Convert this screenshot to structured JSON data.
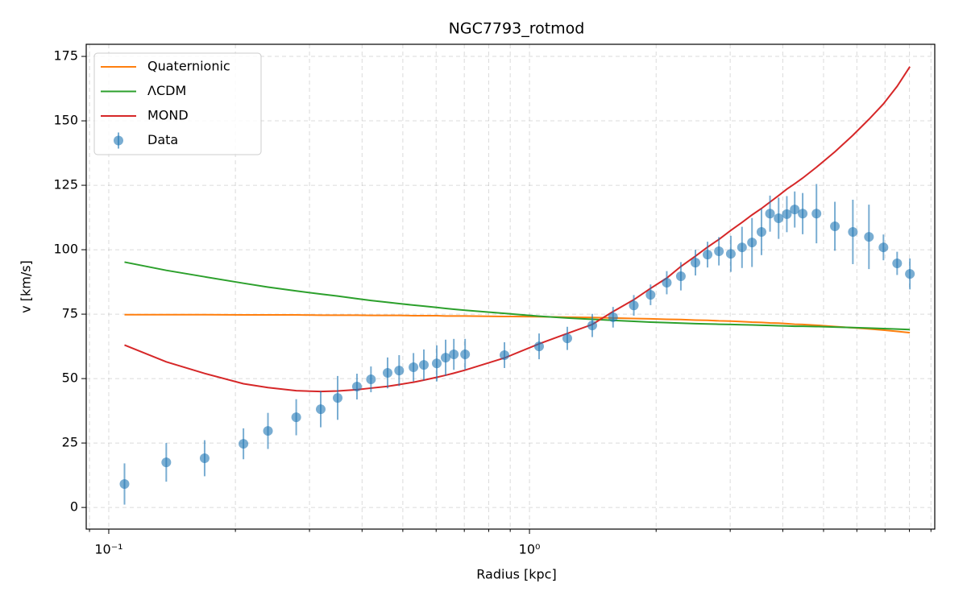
{
  "chart_data": {
    "type": "line",
    "title": "NGC7793_rotmod",
    "x_label": "Radius [kpc]",
    "y_label": "v [km/s]",
    "x_scale": "log",
    "grid": true,
    "legend_position": "upper left",
    "xlim": [
      0.0884,
      9.19
    ],
    "ylim": [
      -8.4,
      179.7
    ],
    "xticks": [
      {
        "value": 0.1,
        "label": "10⁻¹"
      },
      {
        "value": 1,
        "label": "10⁰"
      }
    ],
    "xminorticks": [
      0.09,
      0.2,
      0.3,
      0.4,
      0.5,
      0.6,
      0.7,
      0.8,
      0.9,
      2,
      3,
      4,
      5,
      6,
      7,
      8,
      9
    ],
    "yticks": [
      0,
      25,
      50,
      75,
      100,
      125,
      150,
      175
    ],
    "x": [
      0.109,
      0.137,
      0.169,
      0.209,
      0.239,
      0.279,
      0.319,
      0.35,
      0.389,
      0.42,
      0.46,
      0.49,
      0.53,
      0.561,
      0.602,
      0.632,
      0.661,
      0.703,
      0.872,
      1.054,
      1.23,
      1.41,
      1.58,
      1.77,
      1.94,
      2.12,
      2.29,
      2.48,
      2.65,
      2.82,
      3.01,
      3.2,
      3.38,
      3.56,
      3.73,
      3.91,
      4.09,
      4.27,
      4.46,
      4.81,
      5.32,
      5.87,
      6.41,
      6.94,
      7.48,
      8.02
    ],
    "series": [
      {
        "name": "Quaternionic",
        "type": "line",
        "color": "#ff7f0e",
        "values": [
          74.8,
          74.8,
          74.8,
          74.7,
          74.7,
          74.7,
          74.6,
          74.6,
          74.6,
          74.5,
          74.5,
          74.5,
          74.4,
          74.4,
          74.4,
          74.3,
          74.3,
          74.3,
          74.1,
          74.0,
          73.8,
          73.7,
          73.5,
          73.3,
          73.2,
          73.0,
          72.9,
          72.7,
          72.6,
          72.4,
          72.3,
          72.1,
          71.9,
          71.8,
          71.6,
          71.5,
          71.3,
          71.1,
          71.0,
          70.7,
          70.2,
          69.7,
          69.3,
          68.8,
          68.3,
          67.8
        ]
      },
      {
        "name": "ΛCDM",
        "type": "line",
        "color": "#2ca02c",
        "values": [
          95.2,
          92,
          89.5,
          87,
          85.5,
          84,
          82.8,
          82,
          81,
          80.3,
          79.6,
          79.1,
          78.5,
          78.1,
          77.6,
          77.2,
          76.9,
          76.5,
          75.3,
          74.2,
          73.5,
          73,
          72.6,
          72.2,
          71.9,
          71.7,
          71.5,
          71.3,
          71.2,
          71.1,
          71,
          70.9,
          70.8,
          70.7,
          70.6,
          70.5,
          70.4,
          70.3,
          70.3,
          70.2,
          70,
          69.8,
          69.6,
          69.4,
          69.2,
          69
        ]
      },
      {
        "name": "MOND",
        "type": "line",
        "color": "#d62728",
        "values": [
          63,
          56.5,
          52,
          48,
          46.5,
          45.3,
          45,
          45.2,
          45.7,
          46.3,
          47,
          47.7,
          48.6,
          49.4,
          50.5,
          51.3,
          52.1,
          53.3,
          58,
          63.5,
          67.5,
          71,
          76,
          80.6,
          85,
          89,
          93.5,
          97.5,
          101,
          104,
          107.5,
          110.6,
          113.5,
          116,
          118.5,
          121,
          123.5,
          125.6,
          127.8,
          132,
          138,
          144.4,
          150.6,
          156.6,
          163.4,
          171
        ]
      },
      {
        "name": "Data",
        "type": "errorbar",
        "color": "#1f77b4",
        "values": [
          9.1,
          17.5,
          19.1,
          24.7,
          29.7,
          35,
          38.1,
          42.5,
          46.9,
          49.7,
          52.2,
          53.1,
          54.4,
          55.3,
          55.9,
          58.1,
          59.4,
          59.4,
          59.1,
          62.5,
          65.6,
          70.6,
          73.8,
          78.4,
          82.5,
          87.2,
          89.7,
          95,
          98.1,
          99.4,
          98.4,
          100.9,
          102.8,
          106.9,
          114,
          112.2,
          113.8,
          115.6,
          114,
          114,
          109.1,
          106.9,
          105,
          100.9,
          94.7,
          90.6
        ],
        "errors": [
          8,
          7.5,
          7,
          6,
          7,
          7,
          7,
          8.5,
          5,
          5,
          6,
          6,
          5.5,
          6,
          7,
          7,
          6,
          6,
          5,
          5,
          4.5,
          4.5,
          4,
          4,
          4,
          4.5,
          5.5,
          5,
          5,
          5.5,
          7,
          8,
          9.5,
          9,
          7,
          8,
          7,
          7,
          8,
          11.5,
          9.5,
          12.5,
          12.5,
          5,
          4.5,
          6
        ]
      }
    ]
  }
}
